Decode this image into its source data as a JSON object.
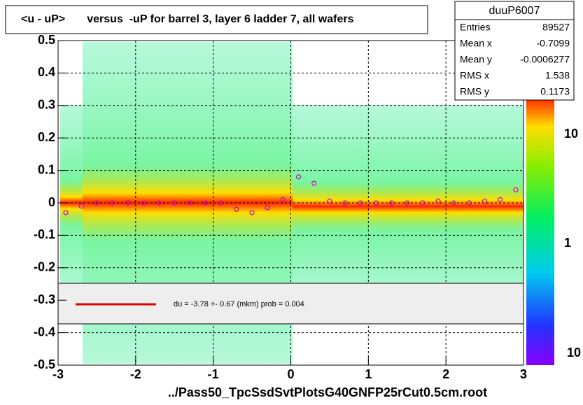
{
  "chart_data": {
    "type": "profile",
    "title": "<u - uP>       versus  -uP for barrel 3, layer 6 ladder 7, all wafers",
    "x_label": "../Pass50_TpcSsdSvtPlotsG40GNFP25rCut0.5cm.root",
    "xlim": [
      -3,
      3
    ],
    "xticks": [
      -3,
      -2,
      -1,
      0,
      1,
      2,
      3
    ],
    "ylim": [
      -0.5,
      0.5
    ],
    "yticks": [
      -0.5,
      -0.4,
      -0.3,
      -0.2,
      -0.1,
      0,
      0.1,
      0.2,
      0.3,
      0.4,
      0.5
    ],
    "grid": true,
    "series": [
      {
        "color": "#cc00cc",
        "x": [
          -2.9,
          -2.7,
          -2.5,
          -2.3,
          -2.1,
          -1.9,
          -1.7,
          -1.5,
          -1.3,
          -1.1,
          -0.9,
          -0.7,
          -0.5,
          -0.3,
          -0.1,
          0.1,
          0.3,
          0.5,
          0.7,
          0.9,
          1.1,
          1.3,
          1.5,
          1.7,
          1.9,
          2.1,
          2.3,
          2.5,
          2.7,
          2.9
        ],
        "values": [
          -0.03,
          -0.01,
          0,
          0,
          0,
          0,
          0,
          0,
          0,
          0,
          0,
          -0.02,
          -0.03,
          -0.015,
          0.01,
          0.08,
          0.06,
          0.005,
          0,
          0,
          0,
          0,
          0,
          0,
          0.005,
          0,
          0,
          0.005,
          0.01,
          0.04
        ]
      }
    ],
    "fit_text": "du =   -3.78 +-  0.67 (mkm) prob = 0.004",
    "stats": {
      "title": "duuP6007",
      "rows": [
        [
          "Entries",
          "89527"
        ],
        [
          "Mean x",
          "-0.7099"
        ],
        [
          "Mean y",
          "-0.0006277"
        ],
        [
          "RMS x",
          "1.538"
        ],
        [
          "RMS y",
          "0.1173"
        ]
      ]
    },
    "colorbar_labels": [
      "10",
      "1",
      "10"
    ]
  }
}
